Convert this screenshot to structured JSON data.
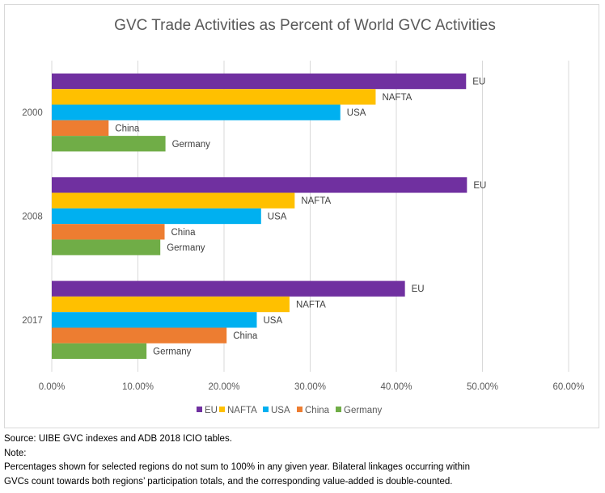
{
  "chart_data": {
    "type": "bar",
    "orientation": "horizontal",
    "title": "GVC Trade Activities as Percent of World GVC Activities",
    "categories": [
      "2000",
      "2008",
      "2017"
    ],
    "series": [
      {
        "name": "EU",
        "color": "#7030A0",
        "values": [
          48.1,
          48.2,
          41.0
        ]
      },
      {
        "name": "NAFTA",
        "color": "#FFC000",
        "values": [
          37.6,
          28.2,
          27.6
        ]
      },
      {
        "name": "USA",
        "color": "#00B0F0",
        "values": [
          33.5,
          24.3,
          23.8
        ]
      },
      {
        "name": "China",
        "color": "#ED7D31",
        "values": [
          6.6,
          13.1,
          20.3
        ]
      },
      {
        "name": "Germany",
        "color": "#70AD47",
        "values": [
          13.2,
          12.6,
          11.0
        ]
      }
    ],
    "xlim": [
      0,
      60
    ],
    "xticks": [
      "0.00%",
      "10.00%",
      "20.00%",
      "30.00%",
      "40.00%",
      "50.00%",
      "60.00%"
    ],
    "unit": "%",
    "grid": true,
    "legend": "bottom",
    "data_labels": "series name"
  },
  "notes": {
    "source": "Source: UIBE GVC indexes and ADB 2018 ICIO tables.",
    "note_label": "Note:",
    "line1": "Percentages shown for selected regions do not sum to 100% in any given year.  Bilateral linkages occurring within",
    "line2": "GVCs count towards both regions’ participation totals, and the corresponding value-added is double-counted."
  }
}
